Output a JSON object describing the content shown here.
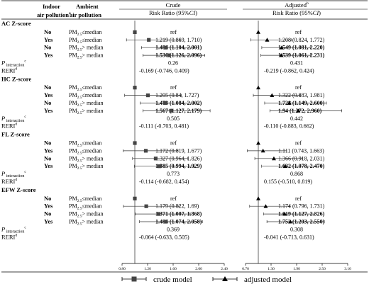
{
  "header": {
    "col1": [
      "Indoor",
      "air pollution"
    ],
    "col1_sup": "a",
    "col2": [
      "Ambient",
      "air pollution"
    ],
    "crude": {
      "title": "Crude",
      "sub": "Risk Ratio (95%",
      "ci": "CI",
      "close": ")"
    },
    "adjusted": {
      "title": "Adjusted",
      "title_sup": "b",
      "sub": "Risk Ratio (95%",
      "ci": "CI",
      "close": ")"
    }
  },
  "legend": {
    "crude": "crude model",
    "adjusted": "adjusted model"
  },
  "p_label": {
    "main": "P",
    "sub": "interaction",
    "sup": "c"
  },
  "reri_label": {
    "main": "RERI",
    "sup": "d"
  },
  "chart_data": {
    "type": "forest",
    "x_ticks": {
      "crude": [
        "0.80",
        "1.20",
        "1.60",
        "2.00",
        "2.40"
      ],
      "adjusted": [
        "0.70",
        "1.30",
        "1.90",
        "2.50",
        "3.10"
      ]
    },
    "crude_xlim": [
      0.8,
      2.4
    ],
    "adjusted_xlim": [
      0.7,
      3.1
    ],
    "reference_line": 1,
    "groups": [
      {
        "title": "AC Z-score",
        "rows": [
          {
            "indoor": "No",
            "ambient": "PM2.5≤median",
            "crude": "ref",
            "adj": "ref",
            "cv": 1,
            "av": 1
          },
          {
            "indoor": "Yes",
            "ambient": "PM2.5≤median",
            "crude": "1.219 (0.869, 1.710)",
            "adj": "1.208 (0.824, 1.772)",
            "cv": 1.219,
            "cl": 0.869,
            "ch": 1.71,
            "av": 1.208,
            "al": 0.824,
            "ah": 1.772,
            "cb": false,
            "ab": false
          },
          {
            "indoor": "No",
            "ambient": "PM2.5> median",
            "crude": "1.486 (1.104, 2.001)",
            "adj": "1.549 (1.081, 2.220)",
            "cv": 1.486,
            "cl": 1.104,
            "ch": 2.001,
            "av": 1.549,
            "al": 1.081,
            "ah": 2.22,
            "cb": true,
            "ab": true
          },
          {
            "indoor": "Yes",
            "ambient": "PM2.5> median",
            "crude": "1.536 (1.126, 2.096)",
            "adj": "1.539 (1.061, 2.231)",
            "cv": 1.536,
            "cl": 1.126,
            "ch": 2.096,
            "av": 1.539,
            "al": 1.061,
            "ah": 2.231,
            "cb": true,
            "ab": true
          }
        ],
        "p": {
          "crude": "0.26",
          "adj": "0.431"
        },
        "reri": {
          "crude": "-0.169 (-0.746, 0.409)",
          "adj": "-0.219 (-0.862, 0.424)"
        }
      },
      {
        "title": "HC Z-score",
        "rows": [
          {
            "indoor": "No",
            "ambient": "PM2.5≤median",
            "crude": "ref",
            "adj": "ref",
            "cv": 1,
            "av": 1
          },
          {
            "indoor": "Yes",
            "ambient": "PM2.5≤median",
            "crude": "1.205 (0.84, 1.727)",
            "adj": "1.322 (0.883, 1.981)",
            "cv": 1.205,
            "cl": 0.84,
            "ch": 1.727,
            "av": 1.322,
            "al": 0.883,
            "ah": 1.981,
            "cb": false,
            "ab": false
          },
          {
            "indoor": "No",
            "ambient": "PM2.5> median",
            "crude": "1.473 (1.084, 2.002)",
            "adj": "1.728 (1.149, 2.600)",
            "cv": 1.473,
            "cl": 1.084,
            "ch": 2.002,
            "av": 1.728,
            "al": 1.149,
            "ah": 2.6,
            "cb": true,
            "ab": true
          },
          {
            "indoor": "Yes",
            "ambient": "PM2.5> median",
            "crude": "1.567 (1.127, 2.179)",
            "adj": "1.94 (1.272, 2.960)",
            "cv": 1.567,
            "cl": 1.127,
            "ch": 2.179,
            "av": 1.94,
            "al": 1.272,
            "ah": 2.96,
            "cb": true,
            "ab": true
          }
        ],
        "p": {
          "crude": "0.505",
          "adj": "0.442"
        },
        "reri": {
          "crude": "-0.111 (-0.703, 0.481)",
          "adj": "-0.110 (-0.883, 0.662)"
        }
      },
      {
        "title": "FL Z-score",
        "rows": [
          {
            "indoor": "No",
            "ambient": "PM2.5≤median",
            "crude": "ref",
            "adj": "ref",
            "cv": 1,
            "av": 1
          },
          {
            "indoor": "Yes",
            "ambient": "PM2.5≤median",
            "crude": "1.172 (0.819, 1.677)",
            "adj": "1.111 (0.743, 1.663)",
            "cv": 1.172,
            "cl": 0.819,
            "ch": 1.677,
            "av": 1.111,
            "al": 0.743,
            "ah": 1.663,
            "cb": false,
            "ab": false
          },
          {
            "indoor": "No",
            "ambient": "PM2.5> median",
            "crude": "1.327 (0.964, 1.826)",
            "adj": "1.366 (0.918, 2.031)",
            "cv": 1.327,
            "cl": 0.964,
            "ch": 1.826,
            "av": 1.366,
            "al": 0.918,
            "ah": 2.031,
            "cb": false,
            "ab": false
          },
          {
            "indoor": "Yes",
            "ambient": "PM2.5> median",
            "crude": "1.385 (0.994, 1.929)",
            "adj": "1.632 (1.078, 2.470)",
            "cv": 1.385,
            "cl": 0.994,
            "ch": 1.929,
            "av": 1.632,
            "al": 1.078,
            "ah": 2.47,
            "cb": true,
            "ab": true
          }
        ],
        "p": {
          "crude": "0.773",
          "adj": "0.868"
        },
        "reri": {
          "crude": "-0.114 (-0.682, 0.454)",
          "adj": "0.155 (-0.510, 0.819)"
        }
      },
      {
        "title": "EFW Z-score",
        "rows": [
          {
            "indoor": "No",
            "ambient": "PM2.5≤median",
            "crude": "ref",
            "adj": "ref",
            "cv": 1,
            "av": 1
          },
          {
            "indoor": "Yes",
            "ambient": "PM2.5≤median",
            "crude": "1.179 (0.822, 1.69)",
            "adj": "1.174 (0.796, 1.731)",
            "cv": 1.179,
            "cl": 0.822,
            "ch": 1.69,
            "av": 1.174,
            "al": 0.796,
            "ah": 1.731,
            "cb": false,
            "ab": false
          },
          {
            "indoor": "No",
            "ambient": "PM2.5> median",
            "crude": "1.371 (1.007, 1.868)",
            "adj": "1.619 (1.127, 2.326)",
            "cv": 1.371,
            "cl": 1.007,
            "ch": 1.868,
            "av": 1.619,
            "al": 1.127,
            "ah": 2.326,
            "cb": true,
            "ab": true
          },
          {
            "indoor": "Yes",
            "ambient": "PM2.5> median",
            "crude": "1.486 (1.074, 2.058)",
            "adj": "1.752 (1.203, 2.550)",
            "cv": 1.486,
            "cl": 1.074,
            "ch": 2.058,
            "av": 1.752,
            "al": 1.203,
            "ah": 2.55,
            "cb": true,
            "ab": true
          }
        ],
        "p": {
          "crude": "0.369",
          "adj": "0.308"
        },
        "reri": {
          "crude": "-0.064 (-0.633, 0.505)",
          "adj": "-0.041 (-0.713, 0.631)"
        }
      }
    ]
  }
}
